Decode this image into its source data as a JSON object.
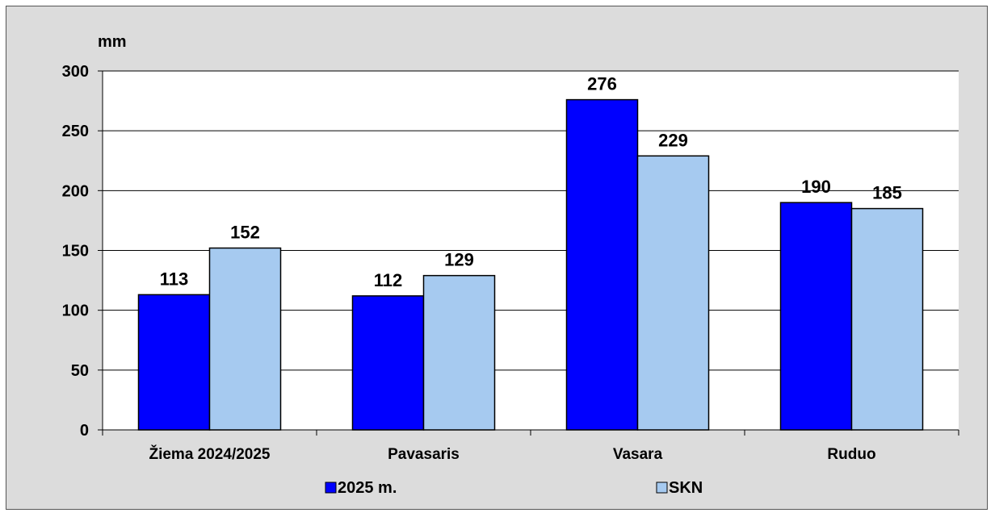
{
  "chart_data": {
    "type": "bar",
    "title": "",
    "xlabel": "",
    "ylabel": "mm",
    "ylim": [
      0,
      300
    ],
    "yticks": [
      0,
      50,
      100,
      150,
      200,
      250,
      300
    ],
    "grid": true,
    "legend_position": "bottom",
    "categories": [
      "Žiema 2024/2025",
      "Pavasaris",
      "Vasara",
      "Ruduo"
    ],
    "series": [
      {
        "name": "2025 m.",
        "values": [
          113,
          112,
          276,
          190
        ],
        "color": "#0000ff"
      },
      {
        "name": "SKN",
        "values": [
          152,
          129,
          229,
          185
        ],
        "color": "#a6caf0"
      }
    ]
  }
}
